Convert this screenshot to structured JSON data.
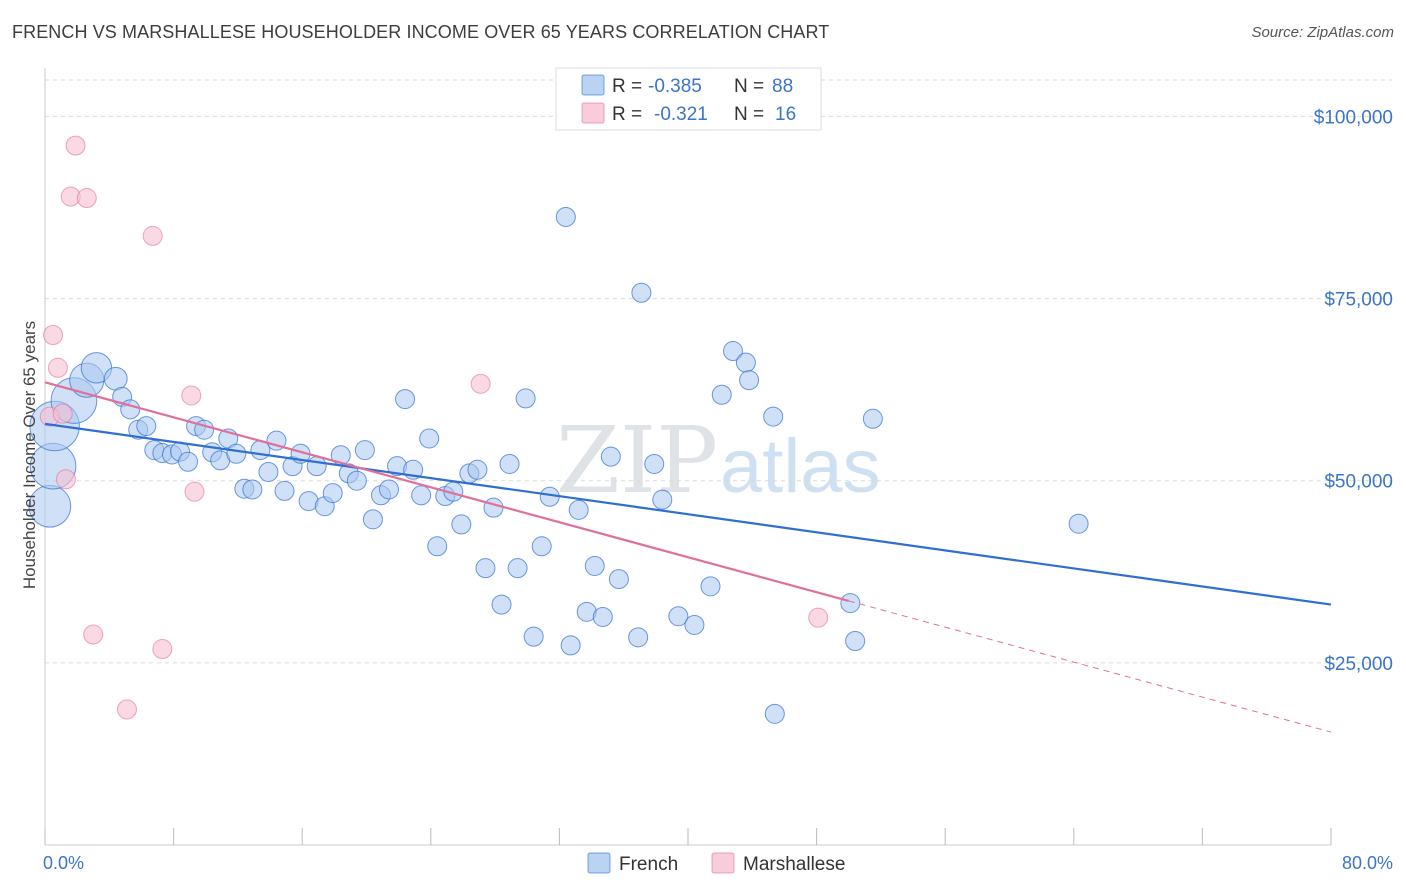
{
  "title": "FRENCH VS MARSHALLESE HOUSEHOLDER INCOME OVER 65 YEARS CORRELATION CHART",
  "source": "Source: ZipAtlas.com",
  "watermark": {
    "zip": "ZIP",
    "atlas": "atlas"
  },
  "colors": {
    "french": "#2f6fd1",
    "french_fill": "#a9c8f0",
    "marshallese": "#e0709b",
    "marshallese_fill": "#f6bfd2",
    "tick_label": "#3b74c8",
    "grid": "#dadada"
  },
  "stats_legend": {
    "rows": [
      {
        "r_label": "R =",
        "r_value": "-0.385",
        "n_label": "N =",
        "n_value": "88"
      },
      {
        "r_label": "R =",
        "r_value": "-0.321",
        "n_label": "N =",
        "n_value": "16"
      }
    ]
  },
  "chart_data": {
    "type": "scatter",
    "xlabel": "",
    "ylabel": "Householder Income Over 65 years",
    "xlim": [
      0,
      80
    ],
    "ylim": [
      0,
      105000
    ],
    "x_tick_labels": [
      "0.0%",
      "80.0%"
    ],
    "y_ticks": [
      25000,
      50000,
      75000,
      100000
    ],
    "y_tick_labels": [
      "$25,000",
      "$50,000",
      "$75,000",
      "$100,000"
    ],
    "grid": true,
    "legend_position": "bottom",
    "series": [
      {
        "name": "French",
        "r": -0.385,
        "n": 88,
        "trend": {
          "x": [
            0,
            80
          ],
          "y": [
            57800,
            33000
          ]
        },
        "points": [
          [
            0.3,
            46500,
            2.2
          ],
          [
            0.5,
            52000,
            2.4
          ],
          [
            0.6,
            57500,
            2.6
          ],
          [
            1.8,
            61000,
            2.4
          ],
          [
            2.6,
            63800,
            1.8
          ],
          [
            3.2,
            65500,
            1.6
          ],
          [
            4.4,
            64000,
            1.2
          ],
          [
            4.8,
            61500,
            1
          ],
          [
            5.3,
            59800,
            1
          ],
          [
            5.8,
            57000,
            1
          ],
          [
            6.3,
            57500,
            1
          ],
          [
            6.8,
            54200,
            1
          ],
          [
            7.3,
            53800,
            1
          ],
          [
            7.9,
            53600,
            1
          ],
          [
            8.4,
            54000,
            1
          ],
          [
            8.9,
            52600,
            1
          ],
          [
            9.4,
            57500,
            1
          ],
          [
            9.9,
            57000,
            1
          ],
          [
            10.4,
            53900,
            1
          ],
          [
            10.9,
            52800,
            1
          ],
          [
            11.4,
            55800,
            1
          ],
          [
            11.9,
            53700,
            1
          ],
          [
            12.4,
            48900,
            1
          ],
          [
            12.9,
            48800,
            1
          ],
          [
            13.4,
            54200,
            1
          ],
          [
            13.9,
            51200,
            1
          ],
          [
            14.4,
            55500,
            1
          ],
          [
            14.9,
            48600,
            1
          ],
          [
            15.4,
            52000,
            1
          ],
          [
            15.9,
            53700,
            1
          ],
          [
            16.4,
            47200,
            1
          ],
          [
            16.9,
            52000,
            1
          ],
          [
            17.4,
            46500,
            1
          ],
          [
            17.9,
            48300,
            1
          ],
          [
            18.4,
            53500,
            1
          ],
          [
            18.9,
            51000,
            1
          ],
          [
            19.4,
            50000,
            1
          ],
          [
            19.9,
            54200,
            1
          ],
          [
            20.4,
            44700,
            1
          ],
          [
            20.9,
            48000,
            1
          ],
          [
            21.4,
            48800,
            1
          ],
          [
            21.9,
            52000,
            1
          ],
          [
            22.4,
            61200,
            1
          ],
          [
            22.9,
            51500,
            1
          ],
          [
            23.4,
            48000,
            1
          ],
          [
            23.9,
            55800,
            1
          ],
          [
            24.4,
            41000,
            1
          ],
          [
            24.9,
            47900,
            1
          ],
          [
            25.4,
            48500,
            1
          ],
          [
            25.9,
            44000,
            1
          ],
          [
            26.4,
            51000,
            1
          ],
          [
            26.9,
            51500,
            1
          ],
          [
            27.4,
            38000,
            1
          ],
          [
            27.9,
            46300,
            1
          ],
          [
            28.4,
            33000,
            1
          ],
          [
            28.9,
            52300,
            1
          ],
          [
            29.4,
            38000,
            1
          ],
          [
            29.9,
            61300,
            1
          ],
          [
            30.4,
            28600,
            1
          ],
          [
            30.9,
            41000,
            1
          ],
          [
            31.4,
            47800,
            1
          ],
          [
            32.4,
            86200,
            1
          ],
          [
            32.7,
            27400,
            1
          ],
          [
            33.2,
            46000,
            1
          ],
          [
            33.7,
            32000,
            1
          ],
          [
            34.2,
            38300,
            1
          ],
          [
            34.7,
            31300,
            1
          ],
          [
            35.2,
            53300,
            1
          ],
          [
            35.7,
            36500,
            1
          ],
          [
            36.9,
            28500,
            1
          ],
          [
            37.1,
            75800,
            1
          ],
          [
            37.9,
            52300,
            1
          ],
          [
            38.4,
            47400,
            1
          ],
          [
            39.4,
            31400,
            1
          ],
          [
            40.4,
            30200,
            1
          ],
          [
            41.4,
            35500,
            1
          ],
          [
            42.1,
            61800,
            1
          ],
          [
            42.8,
            67800,
            1
          ],
          [
            43.6,
            66200,
            1
          ],
          [
            43.8,
            63800,
            1
          ],
          [
            45.3,
            58800,
            1
          ],
          [
            45.4,
            18000,
            1
          ],
          [
            50.1,
            33200,
            1
          ],
          [
            50.4,
            28000,
            1
          ],
          [
            51.5,
            58500,
            1
          ],
          [
            64.3,
            44100,
            1
          ]
        ]
      },
      {
        "name": "Marshallese",
        "r": -0.321,
        "n": 16,
        "trend": {
          "x": [
            0,
            50
          ],
          "y": [
            63500,
            33500
          ]
        },
        "trend_extended": {
          "x": [
            50,
            80
          ],
          "y": [
            33500,
            15500
          ]
        },
        "points": [
          [
            0.3,
            58800,
            1
          ],
          [
            0.5,
            70000,
            1
          ],
          [
            0.8,
            65500,
            1
          ],
          [
            1.1,
            59200,
            1
          ],
          [
            1.3,
            50200,
            1
          ],
          [
            1.6,
            89000,
            1
          ],
          [
            1.9,
            96000,
            1
          ],
          [
            2.6,
            88800,
            1
          ],
          [
            3.0,
            28900,
            1
          ],
          [
            5.1,
            18600,
            1
          ],
          [
            6.7,
            83600,
            1
          ],
          [
            7.3,
            26900,
            1
          ],
          [
            9.1,
            61700,
            1
          ],
          [
            9.3,
            48500,
            1
          ],
          [
            27.1,
            63300,
            1
          ],
          [
            48.1,
            31200,
            1
          ]
        ]
      }
    ]
  }
}
